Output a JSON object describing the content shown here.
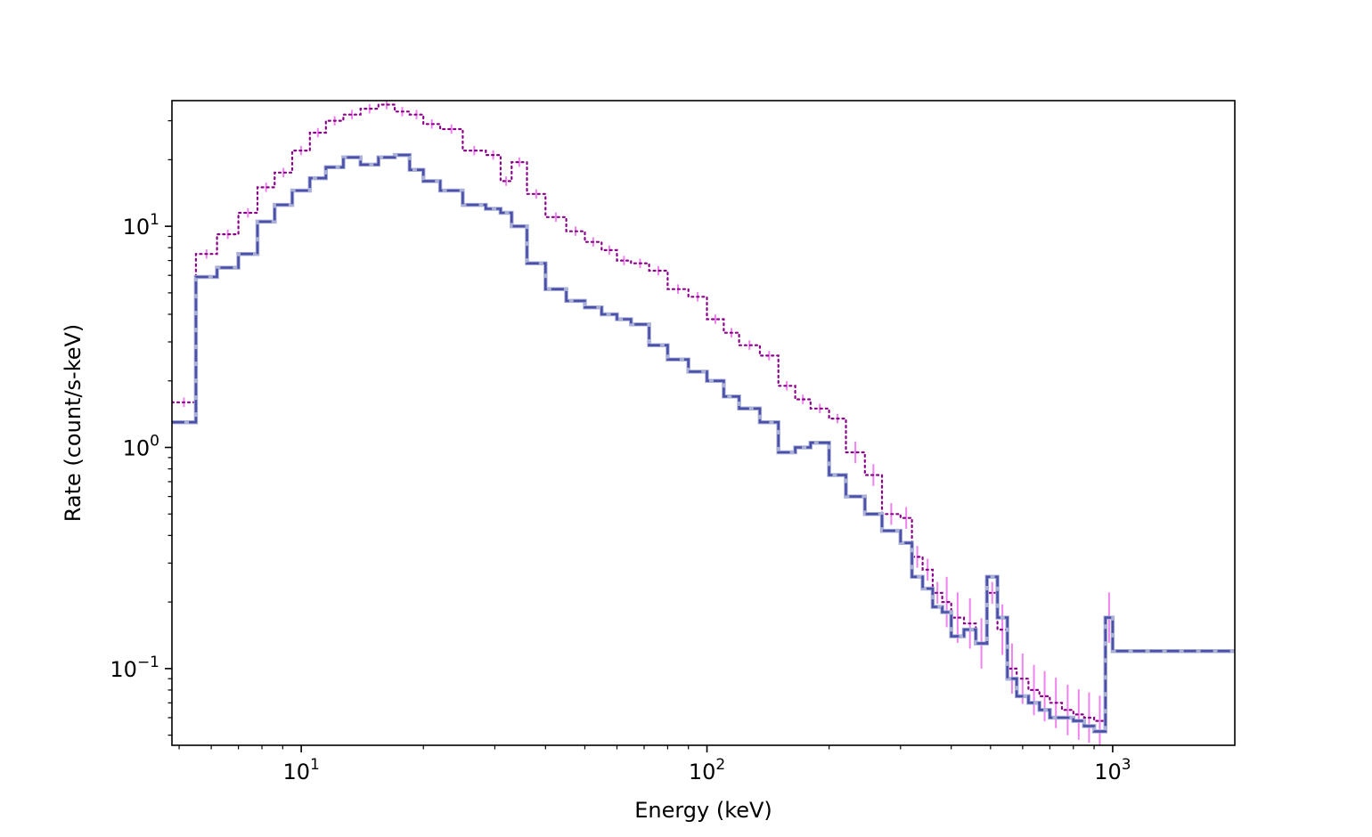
{
  "chart_data": {
    "type": "line",
    "title": "",
    "xlabel": "Energy (keV)",
    "ylabel": "Rate (count/s-keV)",
    "xscale": "log",
    "yscale": "log",
    "xlim": [
      4.8,
      2000
    ],
    "ylim": [
      0.045,
      37
    ],
    "grid": false,
    "legend": "none",
    "x_ticks": [
      {
        "value": 10,
        "base": "10",
        "exp": "1"
      },
      {
        "value": 100,
        "base": "10",
        "exp": "2"
      },
      {
        "value": 1000,
        "base": "10",
        "exp": "3"
      }
    ],
    "y_ticks": [
      {
        "value": 0.1,
        "base": "10",
        "exp": "−1"
      },
      {
        "value": 1,
        "base": "10",
        "exp": "0"
      },
      {
        "value": 10,
        "base": "10",
        "exp": "1"
      }
    ],
    "series": [
      {
        "style": "dotted",
        "color": "#8b008b",
        "error_color": "#ee82ee",
        "edges": [
          4.8,
          5.5,
          6.2,
          7.0,
          7.8,
          8.6,
          9.5,
          10.5,
          11.5,
          12.7,
          14.0,
          15.5,
          17.0,
          18.5,
          20.0,
          22.0,
          25.0,
          28.5,
          31.0,
          33.0,
          36.0,
          40.0,
          45.0,
          50.0,
          55.0,
          60.0,
          65.0,
          72.0,
          80.0,
          90.0,
          100.0,
          110.0,
          120.0,
          135.0,
          150.0,
          165.0,
          180.0,
          200.0,
          220.0,
          245.0,
          270.0,
          300.0,
          320.0,
          340.0,
          360.0,
          380.0,
          400.0,
          430.0,
          460.0,
          490.0,
          520.0,
          550.0,
          580.0,
          620.0,
          660.0,
          700.0,
          750.0,
          800.0,
          850.0,
          900.0,
          960.0,
          1000.0,
          2000.0
        ],
        "values": [
          1.6,
          7.5,
          9.2,
          11.5,
          15.0,
          17.5,
          22.0,
          26.5,
          30.0,
          32.0,
          34.0,
          35.5,
          33.0,
          32.0,
          29.0,
          27.5,
          22.0,
          21.0,
          16.0,
          19.5,
          14.0,
          11.0,
          9.5,
          8.5,
          7.8,
          7.0,
          6.8,
          6.3,
          5.2,
          4.8,
          3.8,
          3.3,
          2.9,
          2.6,
          1.9,
          1.65,
          1.5,
          1.35,
          0.95,
          0.75,
          0.5,
          0.48,
          0.32,
          0.28,
          0.22,
          0.2,
          0.17,
          0.16,
          0.13,
          0.22,
          0.15,
          0.1,
          0.09,
          0.08,
          0.075,
          0.07,
          0.065,
          0.062,
          0.06,
          0.058,
          0.17,
          0.12
        ]
      },
      {
        "style": "dashed",
        "color": "#3a3fa0",
        "halo_color": "#aab0d8",
        "edges": [
          4.8,
          5.5,
          6.2,
          7.0,
          7.8,
          8.6,
          9.5,
          10.5,
          11.5,
          12.7,
          14.0,
          15.5,
          17.0,
          18.5,
          20.0,
          22.0,
          25.0,
          28.5,
          31.0,
          33.0,
          36.0,
          40.0,
          45.0,
          50.0,
          55.0,
          60.0,
          65.0,
          72.0,
          80.0,
          90.0,
          100.0,
          110.0,
          120.0,
          135.0,
          150.0,
          165.0,
          180.0,
          200.0,
          220.0,
          245.0,
          270.0,
          300.0,
          320.0,
          340.0,
          360.0,
          380.0,
          400.0,
          430.0,
          460.0,
          490.0,
          520.0,
          550.0,
          580.0,
          620.0,
          660.0,
          700.0,
          750.0,
          800.0,
          850.0,
          900.0,
          960.0,
          1000.0,
          2000.0
        ],
        "values": [
          1.3,
          5.9,
          6.5,
          7.5,
          10.5,
          12.5,
          14.5,
          16.5,
          18.5,
          20.5,
          19.0,
          20.5,
          21.0,
          18.0,
          16.0,
          14.5,
          12.5,
          12.0,
          11.5,
          10.0,
          6.8,
          5.2,
          4.6,
          4.3,
          4.0,
          3.8,
          3.6,
          2.9,
          2.5,
          2.2,
          2.0,
          1.7,
          1.5,
          1.3,
          0.95,
          1.0,
          1.05,
          0.75,
          0.6,
          0.5,
          0.42,
          0.37,
          0.26,
          0.23,
          0.19,
          0.18,
          0.14,
          0.15,
          0.13,
          0.26,
          0.17,
          0.09,
          0.075,
          0.07,
          0.065,
          0.06,
          0.06,
          0.058,
          0.055,
          0.052,
          0.17,
          0.12
        ]
      }
    ]
  }
}
